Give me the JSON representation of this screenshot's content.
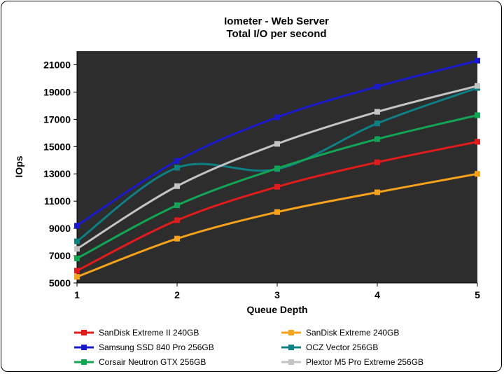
{
  "chart_data": {
    "type": "line",
    "title": "Iometer - Web Server",
    "subtitle": "Total I/O per second",
    "xlabel": "Queue Depth",
    "ylabel": "IOps",
    "x": [
      1,
      2,
      3,
      4,
      5
    ],
    "ylim": [
      5000,
      22000
    ],
    "yticks": [
      5000,
      7000,
      9000,
      11000,
      13000,
      15000,
      17000,
      19000,
      21000
    ],
    "plot_background": "#2d2d2d",
    "legend_position": "bottom",
    "series": [
      {
        "name": "SanDisk Extreme II 240GB",
        "color": "#e01b1b",
        "values": [
          5900,
          9600,
          12050,
          13850,
          15350
        ]
      },
      {
        "name": "SanDisk Extreme 240GB",
        "color": "#f6a21d",
        "values": [
          5450,
          8250,
          10200,
          11650,
          13000
        ]
      },
      {
        "name": "Samsung SSD 840 Pro 256GB",
        "color": "#1a1acc",
        "values": [
          9200,
          13950,
          17150,
          19400,
          21300
        ]
      },
      {
        "name": "OCZ Vector 256GB",
        "color": "#0e7f83",
        "values": [
          8050,
          13450,
          13350,
          16700,
          19300
        ]
      },
      {
        "name": "Corsair Neutron GTX 256GB",
        "color": "#13a556",
        "values": [
          6800,
          10700,
          13400,
          15550,
          17300
        ]
      },
      {
        "name": "Plextor M5 Pro Extreme 256GB",
        "color": "#c4c4c4",
        "values": [
          7500,
          12100,
          15200,
          17550,
          19450
        ]
      }
    ]
  }
}
